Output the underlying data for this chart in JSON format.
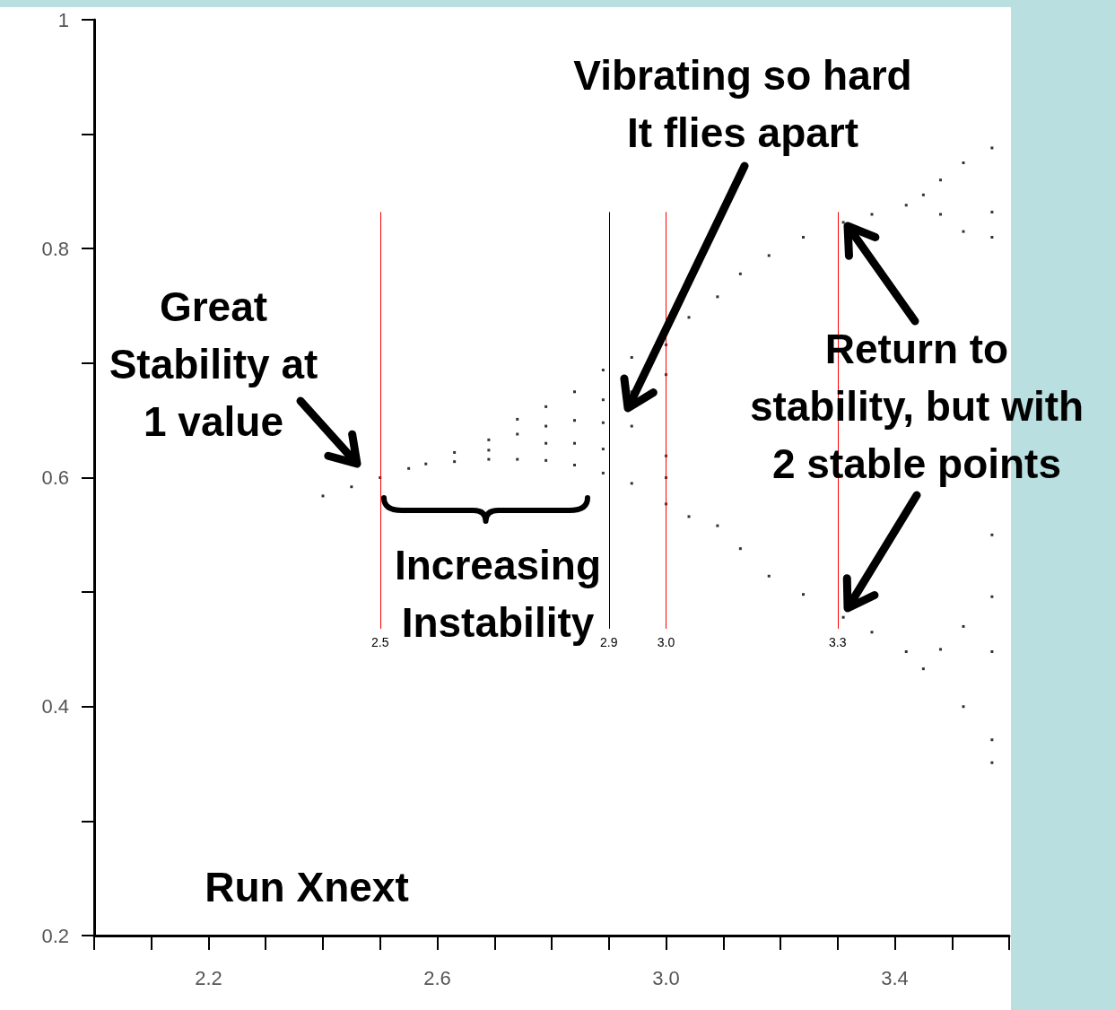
{
  "chart_data": {
    "type": "scatter",
    "annotations": [
      "Great\nStability at\n1 value",
      "Increasing\nInstability",
      "Vibrating so hard\nIt flies apart",
      "Return to\nstability, but with\n2 stable points",
      "Run Xnext"
    ],
    "series": [
      {
        "color": "#000000",
        "x": [
          2.4,
          2.45,
          2.5,
          2.55,
          2.58,
          2.63,
          2.63,
          2.69,
          2.69,
          2.69,
          2.74,
          2.74,
          2.74,
          2.79,
          2.79,
          2.79,
          2.79,
          2.84,
          2.84,
          2.84,
          2.84,
          2.89,
          2.89,
          2.89,
          2.89,
          2.89,
          2.94,
          2.94,
          2.94,
          2.94,
          3.0,
          3.0,
          3.0,
          3.0,
          3.0,
          3.04,
          3.04,
          3.09,
          3.09,
          3.13,
          3.13,
          3.18,
          3.18,
          3.24,
          3.24,
          3.31,
          3.31,
          3.36,
          3.36,
          3.42,
          3.42,
          3.45,
          3.45,
          3.48,
          3.48,
          3.48,
          3.52,
          3.52,
          3.52,
          3.52,
          3.57,
          3.57,
          3.57,
          3.57,
          3.57,
          3.57,
          3.57,
          3.57
        ],
        "values": [
          0.584,
          0.592,
          0.6,
          0.608,
          0.612,
          0.622,
          0.614,
          0.633,
          0.624,
          0.616,
          0.651,
          0.638,
          0.616,
          0.662,
          0.645,
          0.63,
          0.615,
          0.675,
          0.65,
          0.63,
          0.611,
          0.694,
          0.668,
          0.648,
          0.625,
          0.604,
          0.705,
          0.675,
          0.645,
          0.595,
          0.716,
          0.69,
          0.619,
          0.6,
          0.577,
          0.74,
          0.566,
          0.758,
          0.558,
          0.778,
          0.538,
          0.794,
          0.514,
          0.81,
          0.498,
          0.823,
          0.478,
          0.83,
          0.465,
          0.838,
          0.448,
          0.847,
          0.433,
          0.86,
          0.83,
          0.45,
          0.875,
          0.815,
          0.47,
          0.4,
          0.888,
          0.832,
          0.81,
          0.55,
          0.496,
          0.448,
          0.371,
          0.351
        ]
      }
    ],
    "xlim": [
      2.0,
      3.6
    ],
    "ylim": [
      0.2,
      1.0
    ],
    "xticks": [
      {
        "value": 2.0,
        "label": null
      },
      {
        "value": 2.1,
        "label": null
      },
      "2.2",
      {
        "value": 2.3,
        "label": null
      },
      {
        "value": 2.4,
        "label": null
      },
      {
        "value": 2.5,
        "label": null
      },
      "2.6",
      {
        "value": 2.7,
        "label": null
      },
      {
        "value": 2.8,
        "label": null
      },
      {
        "value": 2.9,
        "label": null
      },
      "3.0",
      {
        "value": 3.1,
        "label": null
      },
      {
        "value": 3.2,
        "label": null
      },
      {
        "value": 3.3,
        "label": null
      },
      "3.4",
      {
        "value": 3.5,
        "label": null
      },
      {
        "value": 3.6,
        "label": null
      }
    ],
    "yticks": [
      0.2,
      {
        "value": 0.3,
        "label": null
      },
      0.4,
      {
        "value": 0.5,
        "label": null
      },
      0.6,
      {
        "value": 0.7,
        "label": null
      },
      0.8,
      {
        "value": 0.9,
        "label": null
      },
      1
    ],
    "ref_lines": [
      {
        "axis": "x",
        "value": 2.5,
        "label": "2.5",
        "color": "#ff0000"
      },
      {
        "axis": "x",
        "value": 2.9,
        "label": "2.9",
        "color": "#000000"
      },
      {
        "axis": "x",
        "value": 3.0,
        "label": "3.0",
        "color": "#ff0000"
      },
      {
        "axis": "x",
        "value": 3.3,
        "label": "3.3",
        "color": "#ff0000"
      }
    ],
    "marker": "square",
    "grid": false
  }
}
